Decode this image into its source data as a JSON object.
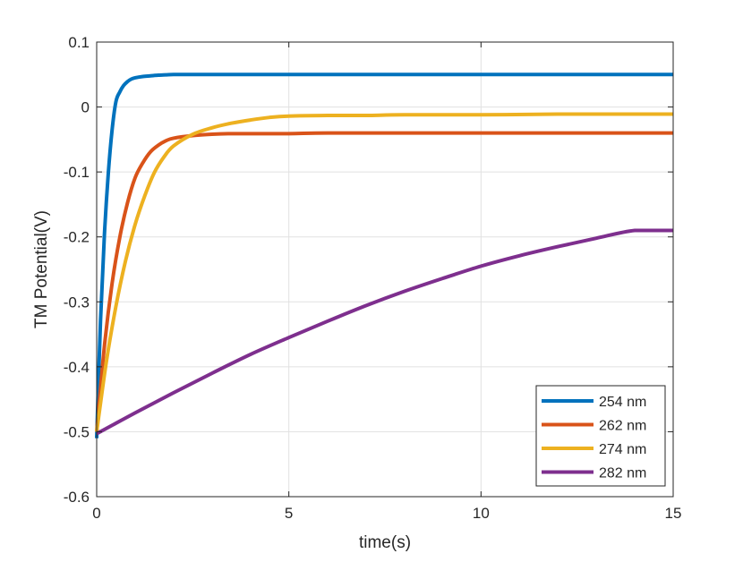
{
  "chart_data": {
    "type": "line",
    "title": "",
    "xlabel": "time(s)",
    "ylabel": "TM Potential(V)",
    "xlim": [
      0,
      15
    ],
    "ylim": [
      -0.6,
      0.1
    ],
    "x_ticks": [
      0,
      5,
      10,
      15
    ],
    "x_tick_labels": [
      "0",
      "5",
      "10",
      "15"
    ],
    "y_ticks": [
      0.1,
      0,
      -0.1,
      -0.2,
      -0.3,
      -0.4,
      -0.5,
      -0.6
    ],
    "y_tick_labels": [
      "0.1",
      "0",
      "-0.1",
      "-0.2",
      "-0.3",
      "-0.4",
      "-0.5",
      "-0.6"
    ],
    "grid": true,
    "legend_position": "bottom-right",
    "series": [
      {
        "name": "254 nm",
        "color": "#0072BD",
        "x": [
          0,
          0.1,
          0.2,
          0.3,
          0.4,
          0.5,
          0.6,
          0.7,
          0.8,
          0.9,
          1.0,
          1.2,
          1.4,
          1.6,
          1.8,
          2.0,
          2.5,
          3,
          4,
          5,
          6,
          8,
          10,
          12,
          15
        ],
        "values": [
          -0.51,
          -0.329,
          -0.198,
          -0.104,
          -0.036,
          0.008,
          0.023,
          0.033,
          0.039,
          0.043,
          0.045,
          0.047,
          0.048,
          0.049,
          0.0495,
          0.05,
          0.05,
          0.05,
          0.05,
          0.05,
          0.05,
          0.05,
          0.05,
          0.05,
          0.05
        ]
      },
      {
        "name": "262 nm",
        "color": "#D95319",
        "x": [
          0,
          0.2,
          0.4,
          0.6,
          0.8,
          1.0,
          1.2,
          1.4,
          1.6,
          1.8,
          2.0,
          2.5,
          3,
          3.5,
          4,
          5,
          6,
          8,
          10,
          12,
          15
        ],
        "values": [
          -0.5,
          -0.369,
          -0.272,
          -0.201,
          -0.148,
          -0.109,
          -0.086,
          -0.069,
          -0.059,
          -0.052,
          -0.048,
          -0.044,
          -0.042,
          -0.041,
          -0.041,
          -0.041,
          -0.04,
          -0.04,
          -0.04,
          -0.04,
          -0.04
        ]
      },
      {
        "name": "274 nm",
        "color": "#EDB120",
        "x": [
          0,
          0.25,
          0.5,
          0.75,
          1.0,
          1.25,
          1.5,
          1.75,
          2.0,
          2.5,
          3,
          3.5,
          4,
          4.5,
          5,
          6,
          7,
          8,
          10,
          12,
          15
        ],
        "values": [
          -0.5,
          -0.393,
          -0.307,
          -0.237,
          -0.181,
          -0.137,
          -0.101,
          -0.077,
          -0.06,
          -0.042,
          -0.032,
          -0.025,
          -0.02,
          -0.016,
          -0.014,
          -0.013,
          -0.013,
          -0.012,
          -0.012,
          -0.011,
          -0.011
        ]
      },
      {
        "name": "282 nm",
        "color": "#7E2F8E",
        "x": [
          0,
          1,
          2,
          3,
          4,
          5,
          6,
          7,
          8,
          9,
          10,
          11,
          12,
          13,
          14,
          15
        ],
        "values": [
          -0.503,
          -0.471,
          -0.44,
          -0.41,
          -0.381,
          -0.355,
          -0.33,
          -0.306,
          -0.284,
          -0.264,
          -0.245,
          -0.229,
          -0.215,
          -0.202,
          -0.19,
          -0.19
        ]
      }
    ]
  }
}
